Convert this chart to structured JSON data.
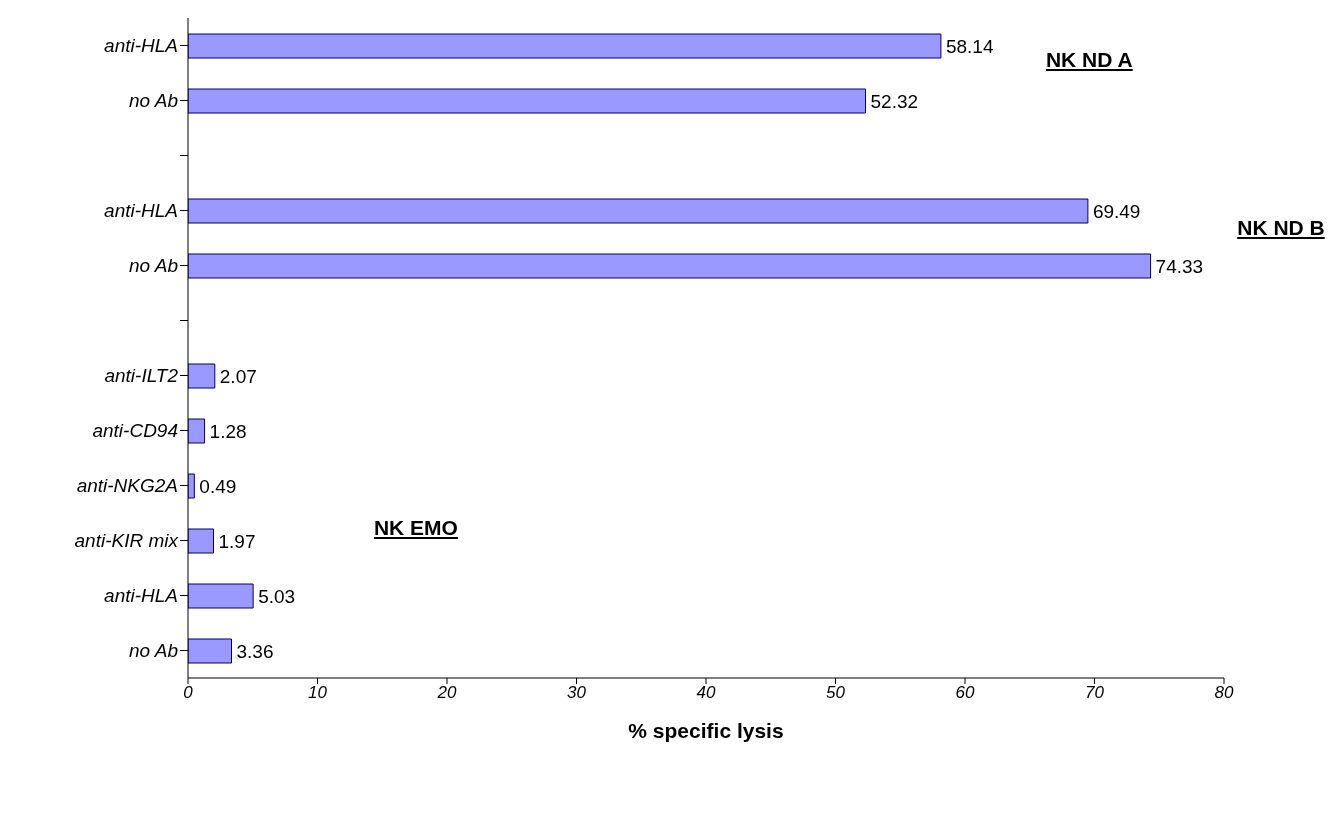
{
  "chart_data": {
    "type": "bar",
    "orientation": "horizontal",
    "categories": [
      "anti-HLA",
      "no Ab",
      null,
      "anti-HLA",
      "no Ab",
      null,
      "anti-ILT2",
      "anti-CD94",
      "anti-NKG2A",
      "anti-KIR mix",
      "anti-HLA",
      "no Ab"
    ],
    "values": [
      58.14,
      52.32,
      null,
      69.49,
      74.33,
      null,
      2.07,
      1.28,
      0.49,
      1.97,
      5.03,
      3.36
    ],
    "color": "#9999ff",
    "xlabel": "% specific lysis",
    "xlim": [
      0,
      80
    ],
    "xticks": [
      0,
      10,
      20,
      30,
      40,
      50,
      60,
      70,
      80
    ],
    "data_labels": true,
    "grid": false,
    "annotations": [
      "NK ND A",
      "NK ND B",
      "NK EMO"
    ]
  }
}
